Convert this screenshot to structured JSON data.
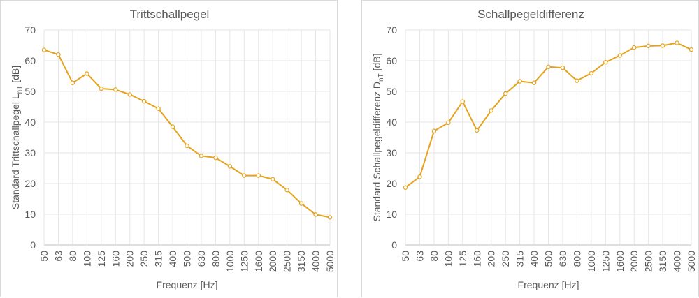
{
  "chart_data": [
    {
      "type": "line",
      "title": "Trittschallpegel",
      "xlabel": "Frequenz [Hz]",
      "ylabel": "Standard Trittschallpegel L",
      "ylabel_sub": "nT",
      "ylabel_unit": " [dB]",
      "ylim": [
        0,
        70
      ],
      "yticks": [
        0,
        10,
        20,
        30,
        40,
        50,
        60,
        70
      ],
      "grid": true,
      "categories": [
        "50",
        "63",
        "80",
        "100",
        "125",
        "160",
        "200",
        "250",
        "315",
        "400",
        "500",
        "630",
        "800",
        "1000",
        "1250",
        "1600",
        "2000",
        "2500",
        "3150",
        "4000",
        "5000"
      ],
      "values": [
        63.5,
        62.0,
        52.8,
        55.8,
        50.9,
        50.6,
        49.0,
        46.8,
        44.4,
        38.5,
        32.3,
        29.0,
        28.4,
        25.6,
        22.6,
        22.6,
        21.4,
        17.9,
        13.5,
        9.9,
        9.0
      ],
      "color": "#e5a21d"
    },
    {
      "type": "line",
      "title": "Schallpegeldifferenz",
      "xlabel": "Frequenz [Hz]",
      "ylabel": "Standard Schallpegeldifferenz D",
      "ylabel_sub": "nT",
      "ylabel_unit": " [dB]",
      "ylim": [
        0,
        70
      ],
      "yticks": [
        0,
        10,
        20,
        30,
        40,
        50,
        60,
        70
      ],
      "grid": true,
      "categories": [
        "50",
        "63",
        "80",
        "100",
        "125",
        "160",
        "200",
        "250",
        "315",
        "400",
        "500",
        "630",
        "800",
        "1000",
        "1250",
        "1600",
        "2000",
        "2500",
        "3150",
        "4000",
        "5000"
      ],
      "values": [
        18.7,
        22.2,
        37.1,
        39.8,
        46.7,
        37.3,
        43.8,
        49.3,
        53.3,
        52.8,
        58.0,
        57.7,
        53.5,
        55.9,
        59.5,
        61.7,
        64.3,
        64.8,
        64.9,
        65.8,
        63.6
      ],
      "color": "#e5a21d"
    }
  ]
}
